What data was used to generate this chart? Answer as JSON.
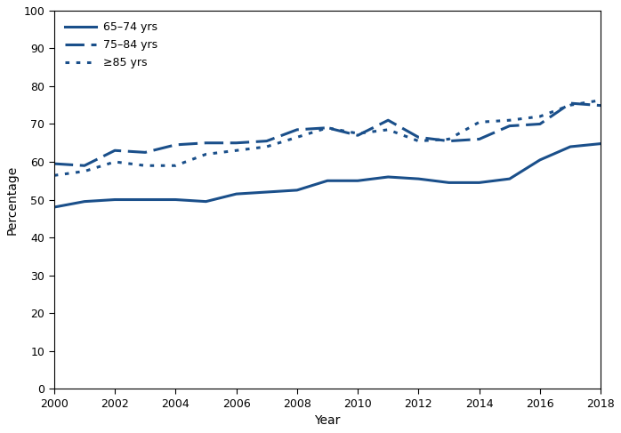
{
  "years": [
    2000,
    2001,
    2002,
    2003,
    2004,
    2005,
    2006,
    2007,
    2008,
    2009,
    2010,
    2011,
    2012,
    2013,
    2014,
    2015,
    2016,
    2017,
    2018
  ],
  "line_65_74": [
    48.0,
    49.5,
    50.0,
    50.0,
    50.0,
    49.5,
    51.5,
    52.0,
    52.5,
    55.0,
    55.0,
    56.0,
    55.5,
    54.5,
    54.5,
    55.5,
    60.5,
    64.0,
    64.8
  ],
  "line_75_84": [
    59.5,
    59.0,
    63.0,
    62.5,
    64.5,
    65.0,
    65.0,
    65.5,
    68.5,
    69.0,
    67.0,
    71.0,
    66.5,
    65.5,
    66.0,
    69.5,
    70.0,
    75.5,
    74.9
  ],
  "line_85plus": [
    56.4,
    57.5,
    60.0,
    59.0,
    59.0,
    62.0,
    63.0,
    64.0,
    66.5,
    69.0,
    67.5,
    68.5,
    65.5,
    66.0,
    70.5,
    71.0,
    72.0,
    75.0,
    76.3
  ],
  "color": "#1a4f8a",
  "ylabel": "Percentage",
  "xlabel": "Year",
  "ylim": [
    0,
    100
  ],
  "xlim": [
    2000,
    2018
  ],
  "yticks": [
    0,
    10,
    20,
    30,
    40,
    50,
    60,
    70,
    80,
    90,
    100
  ],
  "xticks": [
    2000,
    2002,
    2004,
    2006,
    2008,
    2010,
    2012,
    2014,
    2016,
    2018
  ],
  "legend_labels": [
    "65–74 yrs",
    "75–84 yrs",
    "≥85 yrs"
  ]
}
